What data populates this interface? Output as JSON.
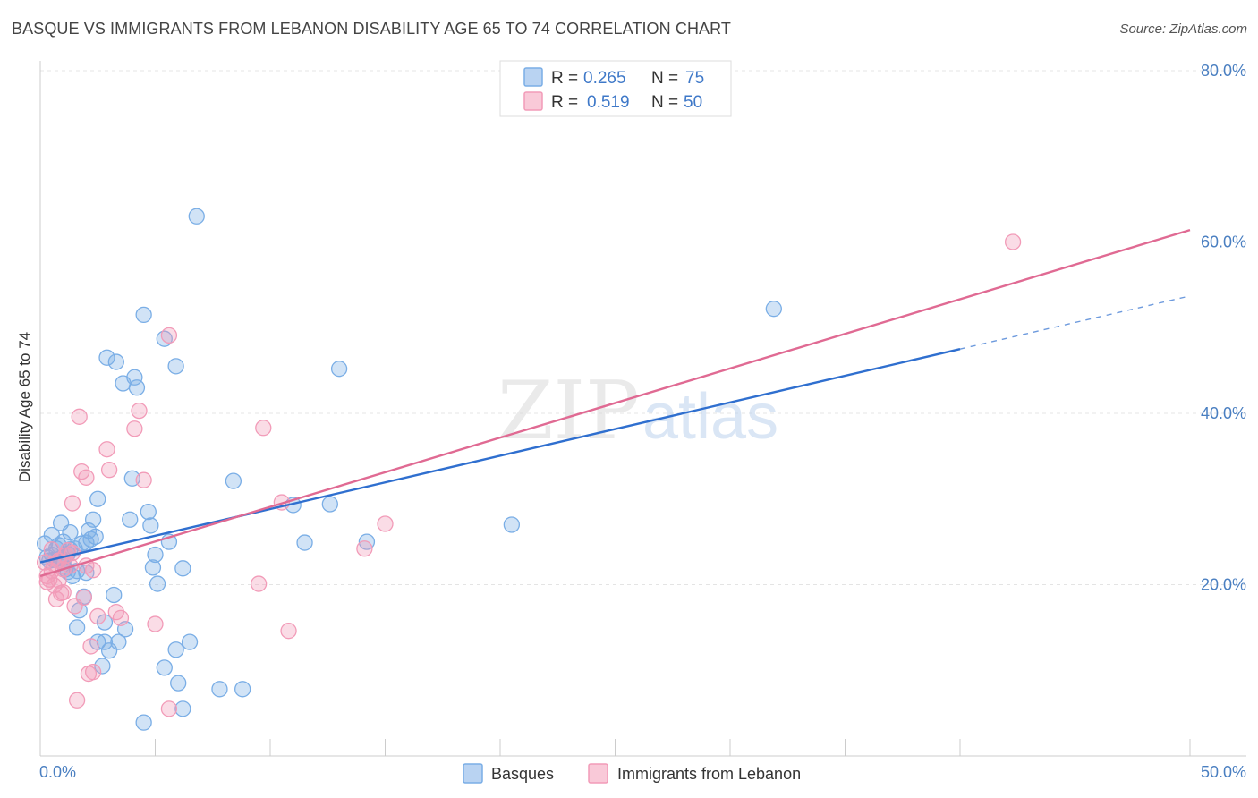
{
  "header": {
    "title": "BASQUE VS IMMIGRANTS FROM LEBANON DISABILITY AGE 65 TO 74 CORRELATION CHART",
    "source": "Source: ZipAtlas.com"
  },
  "watermark": {
    "zip": "ZIP",
    "atlas": "atlas"
  },
  "legend": {
    "rows": [
      {
        "r_label": "R =",
        "r_value": "0.265",
        "n_label": "N =",
        "n_value": "75",
        "color": "#7aaee6"
      },
      {
        "r_label": "R =",
        "r_value": "0.519",
        "n_label": "N =",
        "n_value": "50",
        "color": "#f29bb8"
      }
    ]
  },
  "chart_data": {
    "type": "scatter",
    "title": "BASQUE VS IMMIGRANTS FROM LEBANON DISABILITY AGE 65 TO 74 CORRELATION CHART",
    "xlabel": "",
    "ylabel": "Disability Age 65 to 74",
    "xlim": [
      0,
      50
    ],
    "ylim": [
      0,
      80
    ],
    "x_tick_labels": [
      "0.0%",
      "50.0%"
    ],
    "y_ticks": [
      20,
      40,
      60,
      80
    ],
    "y_tick_labels": [
      "20.0%",
      "40.0%",
      "60.0%",
      "80.0%"
    ],
    "grid": true,
    "legend_position": "top-center",
    "series": [
      {
        "name": "Basques",
        "color": "#7aaee6",
        "line_color": "#2f6fcf",
        "trend": {
          "x0": 0,
          "y0": 22.6,
          "x1": 40,
          "y1": 47.5,
          "dashed_to_x": 50,
          "dashed_to_y": 53.7
        },
        "points": [
          [
            0.2,
            24.8
          ],
          [
            0.3,
            23.2
          ],
          [
            0.4,
            22.8
          ],
          [
            0.5,
            23.5
          ],
          [
            0.5,
            25.8
          ],
          [
            0.6,
            22.9
          ],
          [
            0.7,
            24.2
          ],
          [
            0.8,
            24.6
          ],
          [
            0.9,
            23.1
          ],
          [
            0.9,
            27.2
          ],
          [
            1.0,
            22.7
          ],
          [
            1.0,
            25.0
          ],
          [
            1.1,
            21.8
          ],
          [
            1.2,
            21.5
          ],
          [
            1.2,
            23.6
          ],
          [
            1.3,
            24.1
          ],
          [
            1.3,
            26.1
          ],
          [
            1.4,
            21.0
          ],
          [
            1.5,
            24.2
          ],
          [
            1.6,
            15.0
          ],
          [
            1.6,
            21.6
          ],
          [
            1.7,
            17.0
          ],
          [
            1.8,
            24.8
          ],
          [
            1.9,
            18.6
          ],
          [
            2.0,
            21.4
          ],
          [
            2.0,
            24.9
          ],
          [
            2.1,
            26.3
          ],
          [
            2.2,
            25.3
          ],
          [
            2.3,
            27.6
          ],
          [
            2.4,
            25.6
          ],
          [
            2.5,
            13.3
          ],
          [
            2.5,
            30.0
          ],
          [
            2.7,
            10.5
          ],
          [
            2.8,
            15.6
          ],
          [
            2.8,
            13.3
          ],
          [
            2.9,
            46.5
          ],
          [
            3.0,
            12.3
          ],
          [
            3.2,
            18.8
          ],
          [
            3.3,
            46.0
          ],
          [
            3.4,
            13.3
          ],
          [
            3.6,
            43.5
          ],
          [
            3.7,
            14.8
          ],
          [
            3.9,
            27.6
          ],
          [
            4.0,
            32.4
          ],
          [
            4.1,
            44.2
          ],
          [
            4.2,
            43.0
          ],
          [
            4.5,
            3.9
          ],
          [
            4.5,
            51.5
          ],
          [
            4.7,
            28.5
          ],
          [
            4.8,
            26.9
          ],
          [
            4.9,
            22.0
          ],
          [
            5.0,
            23.5
          ],
          [
            5.1,
            20.1
          ],
          [
            5.4,
            10.3
          ],
          [
            5.4,
            48.7
          ],
          [
            5.6,
            25.0
          ],
          [
            5.9,
            12.4
          ],
          [
            5.9,
            45.5
          ],
          [
            6.0,
            8.5
          ],
          [
            6.2,
            5.5
          ],
          [
            6.2,
            21.9
          ],
          [
            6.5,
            13.3
          ],
          [
            6.8,
            63.0
          ],
          [
            7.8,
            7.8
          ],
          [
            8.4,
            32.1
          ],
          [
            8.8,
            7.8
          ],
          [
            11.0,
            29.3
          ],
          [
            11.5,
            24.9
          ],
          [
            12.6,
            29.4
          ],
          [
            13.0,
            45.2
          ],
          [
            14.2,
            25.0
          ],
          [
            20.5,
            27.0
          ],
          [
            31.9,
            52.2
          ]
        ]
      },
      {
        "name": "Immigrants from Lebanon",
        "color": "#f29bb8",
        "line_color": "#e06a93",
        "trend": {
          "x0": 0,
          "y0": 21.0,
          "x1": 50,
          "y1": 61.4
        },
        "points": [
          [
            0.2,
            22.6
          ],
          [
            0.3,
            20.3
          ],
          [
            0.3,
            21.0
          ],
          [
            0.4,
            20.6
          ],
          [
            0.5,
            21.6
          ],
          [
            0.5,
            24.1
          ],
          [
            0.6,
            19.9
          ],
          [
            0.6,
            22.4
          ],
          [
            0.7,
            18.3
          ],
          [
            0.8,
            20.5
          ],
          [
            0.8,
            22.8
          ],
          [
            0.9,
            19.0
          ],
          [
            1.0,
            19.1
          ],
          [
            1.0,
            21.8
          ],
          [
            1.1,
            23.4
          ],
          [
            1.2,
            24.0
          ],
          [
            1.3,
            22.2
          ],
          [
            1.4,
            23.7
          ],
          [
            1.4,
            29.5
          ],
          [
            1.5,
            17.5
          ],
          [
            1.6,
            6.5
          ],
          [
            1.7,
            39.6
          ],
          [
            1.8,
            33.2
          ],
          [
            1.9,
            18.5
          ],
          [
            2.0,
            22.2
          ],
          [
            2.0,
            32.5
          ],
          [
            2.1,
            9.6
          ],
          [
            2.2,
            12.8
          ],
          [
            2.3,
            21.7
          ],
          [
            2.3,
            9.8
          ],
          [
            2.5,
            16.3
          ],
          [
            2.9,
            35.8
          ],
          [
            3.0,
            33.4
          ],
          [
            3.3,
            16.8
          ],
          [
            3.5,
            16.1
          ],
          [
            4.1,
            38.2
          ],
          [
            4.3,
            40.3
          ],
          [
            4.5,
            32.2
          ],
          [
            5.0,
            15.4
          ],
          [
            5.6,
            5.5
          ],
          [
            5.6,
            49.1
          ],
          [
            9.5,
            20.1
          ],
          [
            9.7,
            38.3
          ],
          [
            10.5,
            29.6
          ],
          [
            10.8,
            14.6
          ],
          [
            14.1,
            24.2
          ],
          [
            15.0,
            27.1
          ],
          [
            42.3,
            60.0
          ]
        ]
      }
    ]
  },
  "bottom_legend": {
    "items": [
      {
        "label": "Basques",
        "color": "#7aaee6"
      },
      {
        "label": "Immigrants from Lebanon",
        "color": "#f29bb8"
      }
    ]
  }
}
